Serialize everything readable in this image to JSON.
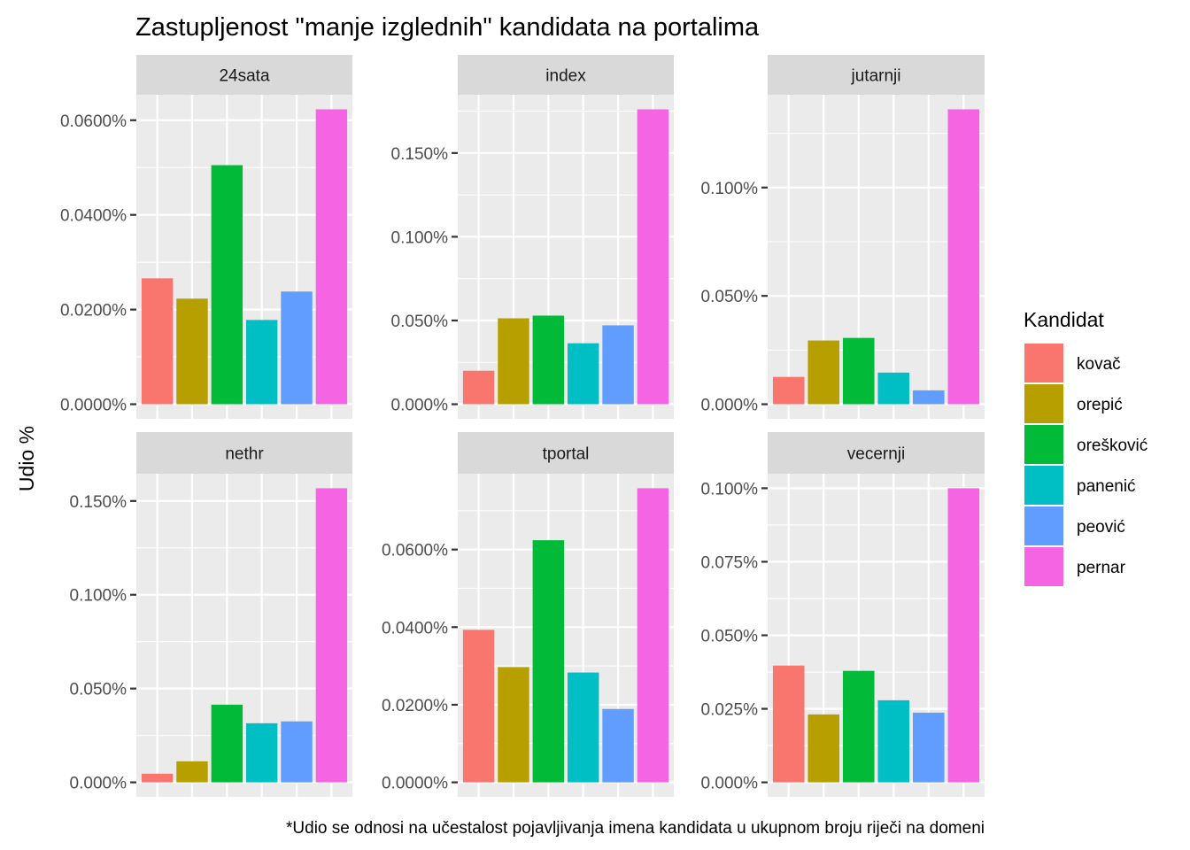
{
  "chart_data": {
    "type": "bar",
    "title": "Zastupljenost \"manje izglednih\" kandidata na portalima",
    "xlabel": "",
    "ylabel": "Udio %",
    "caption": "*Udio se odnosi na učestalost pojavljivanja imena kandidata u ukupnom broju riječi na domeni",
    "facet_layout": "2 rows x 3 columns, free y scales",
    "grid": true,
    "legend": {
      "title": "Kandidat",
      "position": "right",
      "entries": [
        {
          "label": "kovač",
          "color": "#F8766D"
        },
        {
          "label": "orepić",
          "color": "#B79F00"
        },
        {
          "label": "orešković",
          "color": "#00BA38"
        },
        {
          "label": "panenić",
          "color": "#00BFC4"
        },
        {
          "label": "peović",
          "color": "#619CFF"
        },
        {
          "label": "pernar",
          "color": "#F564E3"
        }
      ]
    },
    "categories": [
      "kovač",
      "orepić",
      "orešković",
      "panenić",
      "peović",
      "pernar"
    ],
    "value_unit": "percent",
    "facets": [
      {
        "name": "24sata",
        "values": [
          0.0266,
          0.0223,
          0.0505,
          0.0178,
          0.0238,
          0.0623
        ],
        "ylim": [
          0,
          0.0655
        ],
        "yticks": [
          0,
          0.02,
          0.04,
          0.06
        ],
        "ytick_labels": [
          "0.0000%",
          "0.0200%",
          "0.0400%",
          "0.0600%"
        ]
      },
      {
        "name": "index",
        "values": [
          0.02,
          0.0513,
          0.0529,
          0.0364,
          0.0471,
          0.1761
        ],
        "ylim": [
          0,
          0.185
        ],
        "yticks": [
          0,
          0.05,
          0.1,
          0.15
        ],
        "ytick_labels": [
          "0.000%",
          "0.050%",
          "0.100%",
          "0.150%"
        ]
      },
      {
        "name": "jutarnji",
        "values": [
          0.0126,
          0.0294,
          0.0306,
          0.0146,
          0.0064,
          0.1361
        ],
        "ylim": [
          0,
          0.143
        ],
        "yticks": [
          0,
          0.05,
          0.1
        ],
        "ytick_labels": [
          "0.000%",
          "0.050%",
          "0.100%"
        ]
      },
      {
        "name": "nethr",
        "values": [
          0.0046,
          0.0112,
          0.0414,
          0.0315,
          0.0325,
          0.1568
        ],
        "ylim": [
          0,
          0.165
        ],
        "yticks": [
          0,
          0.05,
          0.1,
          0.15
        ],
        "ytick_labels": [
          "0.000%",
          "0.050%",
          "0.100%",
          "0.150%"
        ]
      },
      {
        "name": "tportal",
        "values": [
          0.0393,
          0.0297,
          0.0624,
          0.0283,
          0.0189,
          0.0758
        ],
        "ylim": [
          0,
          0.0796
        ],
        "yticks": [
          0,
          0.02,
          0.04,
          0.06
        ],
        "ytick_labels": [
          "0.0000%",
          "0.0200%",
          "0.0400%",
          "0.0600%"
        ]
      },
      {
        "name": "vecernji",
        "values": [
          0.0397,
          0.0231,
          0.0379,
          0.0279,
          0.0237,
          0.1
        ],
        "ylim": [
          0,
          0.105
        ],
        "yticks": [
          0,
          0.025,
          0.05,
          0.075,
          0.1
        ],
        "ytick_labels": [
          "0.000%",
          "0.025%",
          "0.050%",
          "0.075%",
          "0.100%"
        ]
      }
    ]
  }
}
